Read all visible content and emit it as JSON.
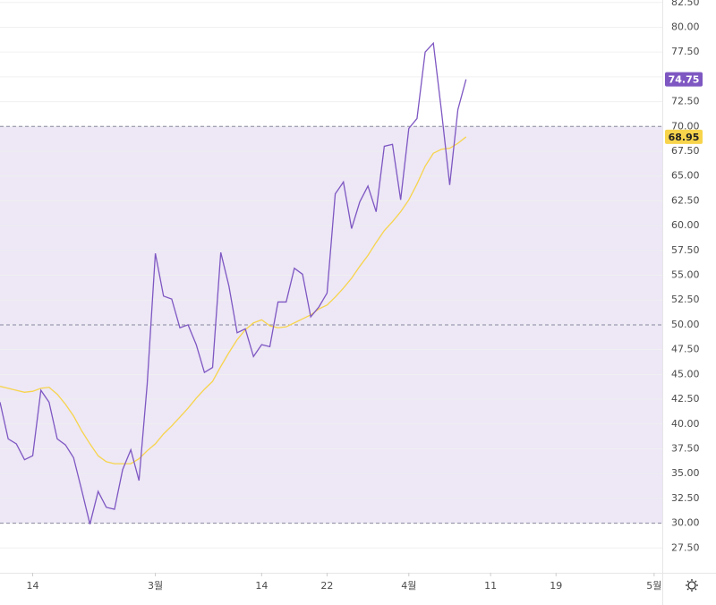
{
  "chart_data": {
    "type": "line",
    "x": [
      10,
      11,
      12,
      13,
      14,
      15,
      16,
      17,
      18,
      19,
      20,
      21,
      22,
      23,
      24,
      25,
      26,
      27,
      28,
      29,
      30,
      31,
      32,
      33,
      34,
      35,
      36,
      37,
      38,
      39,
      40,
      41,
      42,
      43,
      44,
      45,
      46,
      47,
      48,
      49,
      50,
      51,
      52,
      53,
      54,
      55,
      56,
      57,
      58,
      59,
      60,
      61,
      62,
      63,
      64,
      65,
      66,
      67
    ],
    "series": [
      {
        "color": "#7e57c2",
        "values": [
          42.2,
          38.5,
          38.0,
          36.4,
          36.8,
          43.4,
          42.2,
          38.5,
          37.9,
          36.6,
          33.3,
          29.9,
          33.2,
          31.6,
          31.4,
          35.4,
          37.4,
          34.3,
          44.0,
          57.2,
          52.9,
          52.6,
          49.7,
          50.0,
          48.0,
          45.2,
          45.7,
          57.3,
          53.9,
          49.2,
          49.6,
          46.8,
          48.0,
          47.8,
          52.3,
          52.3,
          55.7,
          55.1,
          50.8,
          51.8,
          53.2,
          63.2,
          64.4,
          59.7,
          62.4,
          64.0,
          61.4,
          68.0,
          68.2,
          62.6,
          69.8,
          70.8,
          77.5,
          78.4,
          71.5,
          64.1,
          71.7,
          74.75
        ]
      },
      {
        "color": "#f7d44c",
        "values": [
          43.8,
          43.6,
          43.4,
          43.2,
          43.3,
          43.6,
          43.7,
          43.0,
          42.0,
          40.8,
          39.3,
          38.0,
          36.8,
          36.2,
          36.0,
          36.0,
          36.0,
          36.5,
          37.3,
          38.0,
          39.0,
          39.8,
          40.7,
          41.6,
          42.6,
          43.5,
          44.3,
          45.8,
          47.2,
          48.5,
          49.5,
          50.2,
          50.5,
          49.9,
          49.7,
          49.8,
          50.2,
          50.6,
          51.0,
          51.6,
          52.0,
          52.8,
          53.7,
          54.7,
          55.9,
          57.0,
          58.3,
          59.5,
          60.4,
          61.4,
          62.6,
          64.2,
          66.0,
          67.3,
          67.7,
          67.8,
          68.3,
          68.95
        ]
      }
    ],
    "xlim": [
      10,
      91
    ],
    "xticks": [
      14,
      {
        "value": 29,
        "label": "3월"
      },
      {
        "value": 42,
        "label": "14"
      },
      {
        "value": 50,
        "label": "22"
      },
      {
        "value": 60,
        "label": "4월"
      },
      {
        "value": 70,
        "label": "11"
      },
      {
        "value": 78,
        "label": "19"
      },
      {
        "value": 90,
        "label": "5월"
      }
    ],
    "ylim": [
      25,
      82.75
    ],
    "yticks": [
      {
        "value": 27.5,
        "label": "27.50"
      },
      {
        "value": 30,
        "label": "30.00"
      },
      {
        "value": 32.5,
        "label": "32.50"
      },
      {
        "value": 35,
        "label": "35.00"
      },
      {
        "value": 37.5,
        "label": "37.50"
      },
      {
        "value": 40,
        "label": "40.00"
      },
      {
        "value": 42.5,
        "label": "42.50"
      },
      {
        "value": 45,
        "label": "45.00"
      },
      {
        "value": 47.5,
        "label": "47.50"
      },
      {
        "value": 50,
        "label": "50.00"
      },
      {
        "value": 52.5,
        "label": "52.50"
      },
      {
        "value": 55,
        "label": "55.00"
      },
      {
        "value": 57.5,
        "label": "57.50"
      },
      {
        "value": 60,
        "label": "60.00"
      },
      {
        "value": 62.5,
        "label": "62.50"
      },
      {
        "value": 65,
        "label": "65.00"
      },
      {
        "value": 67.5,
        "label": "67.50"
      },
      {
        "value": 70,
        "label": "70.00"
      },
      {
        "value": 72.5,
        "label": "72.50"
      },
      {
        "value": 75,
        "label": "75.00"
      },
      {
        "value": 77.5,
        "label": "77.50"
      },
      {
        "value": 80,
        "label": "80.00"
      },
      {
        "value": 82.5,
        "label": "82.50"
      }
    ],
    "grid": true,
    "band": [
      30,
      70
    ],
    "band_color": "#ede7f6",
    "hlines": [
      30,
      50,
      70
    ]
  }
}
